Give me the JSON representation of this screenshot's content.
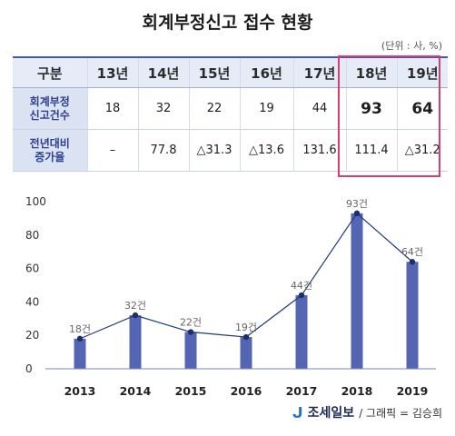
{
  "title": "회계부정신고 접수 현황",
  "unit_note": "(단위 : 사, %)",
  "table": {
    "header": [
      "구분",
      "13년",
      "14년",
      "15년",
      "16년",
      "17년",
      "18년",
      "19년"
    ],
    "rows": [
      {
        "label_lines": [
          "회계부정",
          "신고건수"
        ],
        "values": [
          "18",
          "32",
          "22",
          "19",
          "44",
          "93",
          "64"
        ]
      },
      {
        "label_lines": [
          "전년대비",
          "증가율"
        ],
        "values": [
          "–",
          "77.8",
          "△31.3",
          "△13.6",
          "131.6",
          "111.4",
          "△31.2"
        ]
      }
    ],
    "highlighted_years": [
      "18년",
      "19년"
    ],
    "highlight_color": "#d63d72"
  },
  "chart_data": {
    "type": "bar",
    "categories": [
      "2013",
      "2014",
      "2015",
      "2016",
      "2017",
      "2018",
      "2019"
    ],
    "values": [
      18,
      32,
      22,
      19,
      44,
      93,
      64
    ],
    "data_labels": [
      "18건",
      "32건",
      "22건",
      "19건",
      "44건",
      "93건",
      "64건"
    ],
    "overlay": "line",
    "title": "",
    "xlabel": "",
    "ylabel": "",
    "ylim": [
      0,
      100
    ],
    "yticks": [
      0,
      20,
      40,
      60,
      80,
      100
    ],
    "grid": false,
    "bar_color": "#5466b3",
    "line_color": "#1f3b7a",
    "marker_color": "#1a2f6b"
  },
  "footer": {
    "brand": "조세일보",
    "credit": "/ 그래픽 = 김승희",
    "logo_icon": "brand-swoosh-icon"
  }
}
